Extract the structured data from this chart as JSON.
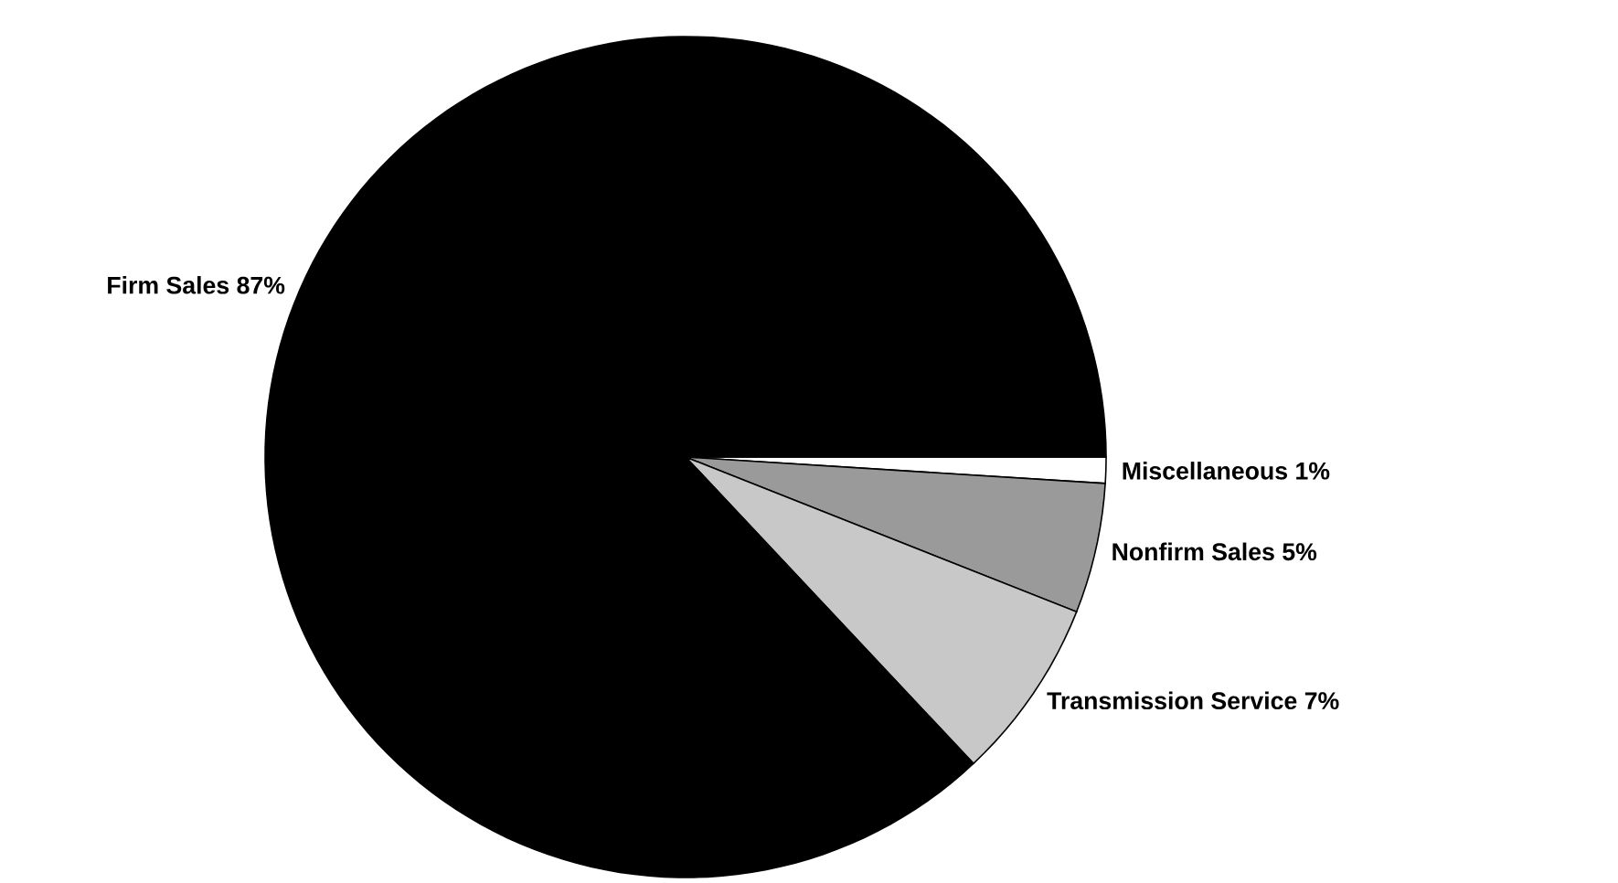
{
  "chart_data": {
    "type": "pie",
    "categories": [
      "Miscellaneous",
      "Nonfirm Sales",
      "Transmission Service",
      "Firm Sales"
    ],
    "values": [
      1,
      5,
      7,
      87
    ],
    "value_labels": [
      "1%",
      "5%",
      "7%",
      "87%"
    ],
    "colors": [
      "#ffffff",
      "#9a9a9a",
      "#c8c8c8",
      "#000000"
    ]
  }
}
